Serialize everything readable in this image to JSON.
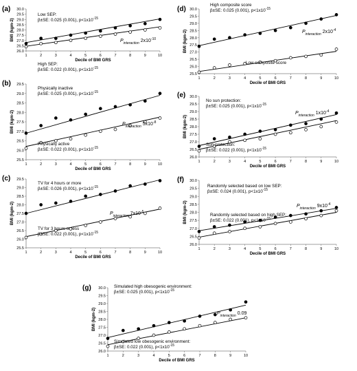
{
  "chart_data": [
    {
      "type": "scatter",
      "panel_label": "(a)",
      "xlabel": "Decile of BMI GRS",
      "ylabel": "BMI (kgm-2)",
      "x": [
        1,
        2,
        3,
        4,
        5,
        6,
        7,
        8,
        9,
        10
      ],
      "xlim": [
        1,
        10
      ],
      "ylim": [
        26.0,
        30.0
      ],
      "yticks": [
        "26.0",
        "26.5",
        "27.0",
        "27.5",
        "28.0",
        "28.5",
        "29.0",
        "29.5",
        "30.0"
      ],
      "series": [
        {
          "name": "Low SEP:",
          "stats": "β±SE: 0.025 (0.001), p<1x10-15",
          "marker": "filled",
          "values": [
            26.7,
            27.2,
            27.2,
            27.5,
            27.7,
            27.9,
            28.2,
            28.4,
            28.6,
            29.0
          ],
          "fit": [
            26.8,
            29.05
          ]
        },
        {
          "name": "High SEP:",
          "stats": "β±SE: 0.022 (0.001), p<1x10-15",
          "marker": "open",
          "values": [
            26.4,
            26.7,
            26.8,
            27.0,
            27.2,
            27.4,
            27.6,
            27.8,
            28.0,
            28.2
          ],
          "fit": [
            26.45,
            28.3
          ]
        }
      ],
      "pinteraction": {
        "label": "interaction",
        "value": "2x10-10"
      }
    },
    {
      "type": "scatter",
      "panel_label": "(b)",
      "xlabel": "Decile of BMI GRS",
      "ylabel": "BMI (kgm-2)",
      "x": [
        1,
        2,
        3,
        4,
        5,
        6,
        7,
        8,
        9,
        10
      ],
      "xlim": [
        1,
        10
      ],
      "ylim": [
        25.5,
        29.5
      ],
      "yticks": [
        "25.5",
        "26.0",
        "26.5",
        "27.0",
        "27.5",
        "28.0",
        "28.5",
        "29.0",
        "29.5"
      ],
      "series": [
        {
          "name": "Physically inactive",
          "stats": "β±SE: 0.025 (0.001), p<1x10-15",
          "marker": "filled",
          "values": [
            26.9,
            27.3,
            27.7,
            27.6,
            27.9,
            28.2,
            28.3,
            28.4,
            28.6,
            29.0
          ],
          "fit": [
            26.9,
            28.9
          ]
        },
        {
          "name": "Physically active",
          "stats": "β±SE: 0.022 (0.001), p<1x10-15",
          "marker": "open",
          "values": [
            26.1,
            26.4,
            26.5,
            26.6,
            26.8,
            27.0,
            27.1,
            27.3,
            27.5,
            27.7
          ],
          "fit": [
            26.2,
            27.75
          ]
        }
      ],
      "pinteraction": {
        "label": "interaction",
        "value": "5x10-8"
      }
    },
    {
      "type": "scatter",
      "panel_label": "(c)",
      "xlabel": "Decile of BMI GRS",
      "ylabel": "BMI (kgm-2)",
      "x": [
        1,
        2,
        3,
        4,
        5,
        6,
        7,
        8,
        9,
        10
      ],
      "xlim": [
        1,
        10
      ],
      "ylim": [
        25.5,
        29.5
      ],
      "yticks": [
        "25.5",
        "26.0",
        "26.5",
        "27.0",
        "27.5",
        "28.0",
        "28.5",
        "29.0",
        "29.5"
      ],
      "series": [
        {
          "name": "TV for 4 hours or more",
          "stats": "β±SE: 0.026 (0.001), p<1x10-15",
          "marker": "filled",
          "values": [
            27.5,
            28.0,
            28.1,
            28.2,
            28.5,
            28.6,
            28.8,
            29.1,
            29.2,
            29.4
          ],
          "fit": [
            27.5,
            29.45
          ]
        },
        {
          "name": "TV for 3 hours or less",
          "stats": "β±SE: 0.022 (0.001), p<1x10-15",
          "marker": "open",
          "values": [
            26.1,
            26.3,
            26.5,
            26.6,
            26.8,
            27.0,
            27.2,
            27.3,
            27.5,
            27.8
          ],
          "fit": [
            26.15,
            27.75
          ]
        }
      ],
      "pinteraction": {
        "label": "interaction",
        "value": "7x10-5"
      }
    },
    {
      "type": "scatter",
      "panel_label": "(d)",
      "xlabel": "Decile of BMI GRS",
      "ylabel": "BMI (kgm-2)",
      "x": [
        1,
        2,
        3,
        4,
        5,
        6,
        7,
        8,
        9,
        10
      ],
      "xlim": [
        1,
        10
      ],
      "ylim": [
        25.5,
        30.0
      ],
      "yticks": [
        "25.5",
        "26.0",
        "26.5",
        "27.0",
        "27.5",
        "28.0",
        "28.5",
        "29.0",
        "29.5",
        "30.0"
      ],
      "series": [
        {
          "name": "High composite score",
          "stats": "β±SE: 0.025 (0.001), p<1x10-15",
          "marker": "filled",
          "values": [
            27.4,
            27.9,
            28.0,
            28.2,
            28.3,
            28.5,
            28.7,
            29.0,
            29.3,
            29.6
          ],
          "fit": [
            27.45,
            29.55
          ]
        },
        {
          "name": "Low composite score",
          "stats": "",
          "marker": "open",
          "values": [
            25.6,
            25.9,
            26.1,
            26.2,
            26.3,
            26.4,
            26.6,
            26.7,
            26.8,
            27.2
          ],
          "fit": [
            25.65,
            27.05
          ]
        }
      ],
      "pinteraction": {
        "label": "interaction",
        "value": "2x10-4"
      }
    },
    {
      "type": "scatter",
      "panel_label": "(e)",
      "xlabel": "Decile of BMI GRS",
      "ylabel": "BMI (kgm-2)",
      "x": [
        1,
        2,
        3,
        4,
        5,
        6,
        7,
        8,
        9,
        10
      ],
      "xlim": [
        1,
        10
      ],
      "ylim": [
        26.0,
        30.0
      ],
      "yticks": [
        "26.0",
        "26.5",
        "27.0",
        "27.5",
        "28.0",
        "28.5",
        "29.0",
        "29.5",
        "30.0"
      ],
      "series": [
        {
          "name": "No sun protection:",
          "stats": "β±SE: 0.025 (0.001), p<1x10-15",
          "marker": "filled",
          "values": [
            26.7,
            27.2,
            27.3,
            27.5,
            27.7,
            27.8,
            28.1,
            28.2,
            28.5,
            28.9
          ],
          "fit": [
            26.75,
            28.8
          ]
        },
        {
          "name": "Sun protection:",
          "stats": "β±SE: 0.022 (0.001), p<1x10-15",
          "marker": "open",
          "values": [
            26.4,
            26.7,
            27.0,
            27.1,
            27.2,
            27.5,
            27.6,
            27.8,
            28.0,
            28.3
          ],
          "fit": [
            26.5,
            28.4
          ]
        }
      ],
      "pinteraction": {
        "label": "interaction",
        "value": "1x10-4"
      }
    },
    {
      "type": "scatter",
      "panel_label": "(f)",
      "xlabel": "Decile of BMI GRS",
      "ylabel": "BMI (kgm-2)",
      "x": [
        1,
        2,
        3,
        4,
        5,
        6,
        7,
        8,
        9,
        10
      ],
      "xlim": [
        1,
        10
      ],
      "ylim": [
        26.0,
        30.0
      ],
      "yticks": [
        "26.0",
        "26.5",
        "27.0",
        "27.5",
        "28.0",
        "28.5",
        "29.0",
        "29.5",
        "30.0"
      ],
      "series": [
        {
          "name": "Randomly selected based on low SEP:",
          "stats": "β±SE: 0.024 (0.001), p<1x10-15",
          "marker": "filled",
          "values": [
            26.8,
            27.1,
            27.2,
            27.4,
            27.5,
            27.7,
            27.8,
            27.9,
            28.1,
            28.3
          ],
          "fit": [
            26.85,
            28.25
          ]
        },
        {
          "name": "Randomly selected based on high SEP:",
          "stats": "β±SE: 0.022 (0.001), p<1x10-15",
          "marker": "open",
          "values": [
            26.4,
            26.7,
            26.8,
            27.0,
            27.1,
            27.3,
            27.4,
            27.6,
            27.8,
            28.1
          ],
          "fit": [
            26.45,
            28.0
          ]
        }
      ],
      "pinteraction": {
        "label": "interaction",
        "value": "9x10-4"
      }
    },
    {
      "type": "scatter",
      "panel_label": "(g)",
      "xlabel": "Decile of BMI GRS",
      "ylabel": "BMI (kgm-2)",
      "x": [
        1,
        2,
        3,
        4,
        5,
        6,
        7,
        8,
        9,
        10
      ],
      "xlim": [
        1,
        10
      ],
      "ylim": [
        26.0,
        30.0
      ],
      "yticks": [
        "26.0",
        "26.5",
        "27.0",
        "27.5",
        "28.0",
        "28.5",
        "29.0",
        "29.5",
        "30.0"
      ],
      "series": [
        {
          "name": "Simulated high obesogenic environment:",
          "stats": "β±SE: 0.025 (0.001), p<1x10-15",
          "marker": "filled",
          "values": [
            26.8,
            27.3,
            27.4,
            27.6,
            27.8,
            27.9,
            28.2,
            28.3,
            28.6,
            29.1
          ],
          "fit": [
            26.85,
            28.9
          ]
        },
        {
          "name": "Simulated low obesogenic environment:",
          "stats": "β±SE: 0.022 (0.001), p<1x10-15",
          "marker": "open",
          "values": [
            26.3,
            26.6,
            26.8,
            27.0,
            27.2,
            27.4,
            27.6,
            27.8,
            28.0,
            28.1
          ],
          "fit": [
            26.4,
            28.1
          ]
        }
      ],
      "pinteraction": {
        "label": "interaction",
        "value": "0.09"
      }
    }
  ]
}
